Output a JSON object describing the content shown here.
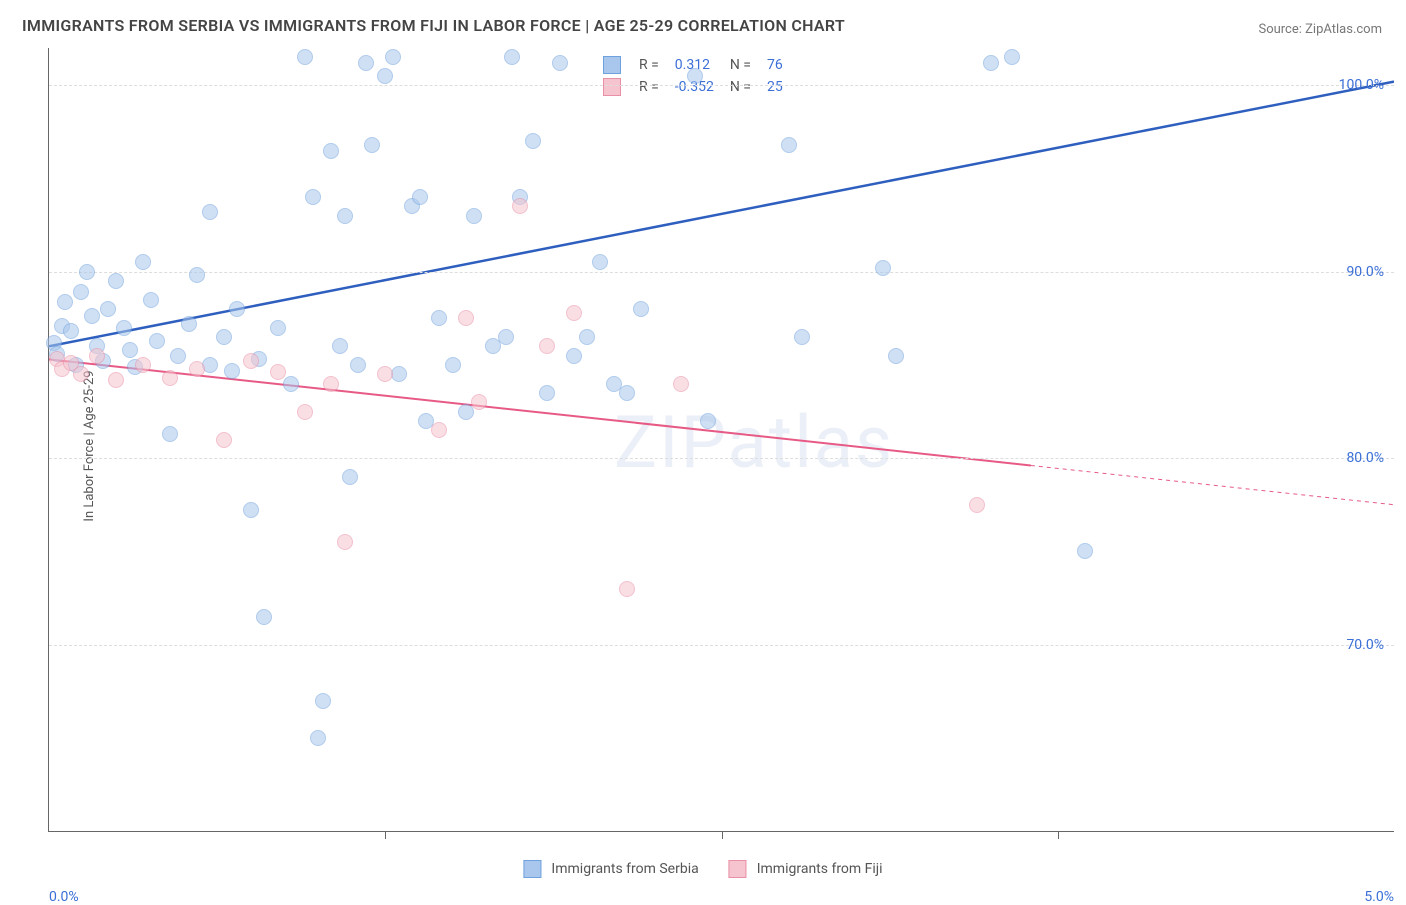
{
  "title": "IMMIGRANTS FROM SERBIA VS IMMIGRANTS FROM FIJI IN LABOR FORCE | AGE 25-29 CORRELATION CHART",
  "source": "Source: ZipAtlas.com",
  "ylabel": "In Labor Force | Age 25-29",
  "watermark": "ZIPatlas",
  "chart": {
    "type": "scatter",
    "xlim": [
      0.0,
      5.0
    ],
    "ylim": [
      60.0,
      102.0
    ],
    "x_tick_positions": [
      0.0,
      1.25,
      2.5,
      3.75,
      5.0
    ],
    "x_tick_labels_visible": {
      "0.0": "0.0%",
      "5.0": "5.0%"
    },
    "y_grid_positions": [
      70.0,
      80.0,
      90.0,
      100.0
    ],
    "y_grid_labels": [
      "70.0%",
      "80.0%",
      "90.0%",
      "100.0%"
    ],
    "grid_color": "#dddddd",
    "axis_color": "#666666",
    "background_color": "#ffffff",
    "tick_label_color": "#3b6fd6",
    "tick_label_fontsize": 14,
    "marker_radius": 8,
    "marker_opacity": 0.55
  },
  "series": [
    {
      "name": "Immigrants from Serbia",
      "color_fill": "#a9c7ec",
      "color_stroke": "#6fa1dd",
      "line_color": "#2e5fbf",
      "line_width": 2.5,
      "trend": {
        "x1": 0.0,
        "y1": 86.0,
        "x2": 5.0,
        "y2": 100.2
      },
      "trend_dash_after_x": null,
      "R": "0.312",
      "N": "76",
      "points": [
        {
          "x": 0.02,
          "y": 86.2
        },
        {
          "x": 0.03,
          "y": 85.6
        },
        {
          "x": 0.05,
          "y": 87.1
        },
        {
          "x": 0.06,
          "y": 88.4
        },
        {
          "x": 0.08,
          "y": 86.8
        },
        {
          "x": 0.1,
          "y": 85.0
        },
        {
          "x": 0.12,
          "y": 88.9
        },
        {
          "x": 0.14,
          "y": 90.0
        },
        {
          "x": 0.16,
          "y": 87.6
        },
        {
          "x": 0.18,
          "y": 86.0
        },
        {
          "x": 0.2,
          "y": 85.2
        },
        {
          "x": 0.22,
          "y": 88.0
        },
        {
          "x": 0.25,
          "y": 89.5
        },
        {
          "x": 0.28,
          "y": 87.0
        },
        {
          "x": 0.3,
          "y": 85.8
        },
        {
          "x": 0.32,
          "y": 84.9
        },
        {
          "x": 0.35,
          "y": 90.5
        },
        {
          "x": 0.38,
          "y": 88.5
        },
        {
          "x": 0.4,
          "y": 86.3
        },
        {
          "x": 0.45,
          "y": 81.3
        },
        {
          "x": 0.48,
          "y": 85.5
        },
        {
          "x": 0.52,
          "y": 87.2
        },
        {
          "x": 0.55,
          "y": 89.8
        },
        {
          "x": 0.6,
          "y": 93.2
        },
        {
          "x": 0.6,
          "y": 85.0
        },
        {
          "x": 0.65,
          "y": 86.5
        },
        {
          "x": 0.68,
          "y": 84.7
        },
        {
          "x": 0.7,
          "y": 88.0
        },
        {
          "x": 0.75,
          "y": 77.2
        },
        {
          "x": 0.78,
          "y": 85.3
        },
        {
          "x": 0.8,
          "y": 71.5
        },
        {
          "x": 0.85,
          "y": 87.0
        },
        {
          "x": 0.9,
          "y": 84.0
        },
        {
          "x": 0.95,
          "y": 101.5
        },
        {
          "x": 0.98,
          "y": 94.0
        },
        {
          "x": 1.0,
          "y": 65.0
        },
        {
          "x": 1.02,
          "y": 67.0
        },
        {
          "x": 1.05,
          "y": 96.5
        },
        {
          "x": 1.08,
          "y": 86.0
        },
        {
          "x": 1.1,
          "y": 93.0
        },
        {
          "x": 1.12,
          "y": 79.0
        },
        {
          "x": 1.15,
          "y": 85.0
        },
        {
          "x": 1.18,
          "y": 101.2
        },
        {
          "x": 1.28,
          "y": 101.5
        },
        {
          "x": 1.2,
          "y": 96.8
        },
        {
          "x": 1.25,
          "y": 100.5
        },
        {
          "x": 1.3,
          "y": 84.5
        },
        {
          "x": 1.35,
          "y": 93.5
        },
        {
          "x": 1.38,
          "y": 94.0
        },
        {
          "x": 1.4,
          "y": 82.0
        },
        {
          "x": 1.45,
          "y": 87.5
        },
        {
          "x": 1.5,
          "y": 85.0
        },
        {
          "x": 1.55,
          "y": 82.5
        },
        {
          "x": 1.58,
          "y": 93.0
        },
        {
          "x": 1.65,
          "y": 86.0
        },
        {
          "x": 1.7,
          "y": 86.5
        },
        {
          "x": 1.72,
          "y": 101.5
        },
        {
          "x": 1.75,
          "y": 94.0
        },
        {
          "x": 1.8,
          "y": 97.0
        },
        {
          "x": 1.85,
          "y": 83.5
        },
        {
          "x": 1.9,
          "y": 101.2
        },
        {
          "x": 1.95,
          "y": 85.5
        },
        {
          "x": 2.0,
          "y": 86.5
        },
        {
          "x": 2.05,
          "y": 90.5
        },
        {
          "x": 2.1,
          "y": 84.0
        },
        {
          "x": 2.15,
          "y": 83.5
        },
        {
          "x": 2.2,
          "y": 88.0
        },
        {
          "x": 2.4,
          "y": 100.5
        },
        {
          "x": 2.45,
          "y": 82.0
        },
        {
          "x": 2.75,
          "y": 96.8
        },
        {
          "x": 2.8,
          "y": 86.5
        },
        {
          "x": 3.5,
          "y": 101.2
        },
        {
          "x": 3.58,
          "y": 101.5
        },
        {
          "x": 3.1,
          "y": 90.2
        },
        {
          "x": 3.15,
          "y": 85.5
        },
        {
          "x": 3.85,
          "y": 75.0
        }
      ]
    },
    {
      "name": "Immigrants from Fiji",
      "color_fill": "#f5c4cf",
      "color_stroke": "#e98fa6",
      "line_color": "#e75a85",
      "line_width": 2.0,
      "trend": {
        "x1": 0.0,
        "y1": 85.3,
        "x2": 5.0,
        "y2": 77.5
      },
      "trend_dash_after_x": 3.65,
      "R": "-0.352",
      "N": "25",
      "points": [
        {
          "x": 0.03,
          "y": 85.3
        },
        {
          "x": 0.05,
          "y": 84.8
        },
        {
          "x": 0.08,
          "y": 85.1
        },
        {
          "x": 0.12,
          "y": 84.5
        },
        {
          "x": 0.18,
          "y": 85.5
        },
        {
          "x": 0.25,
          "y": 84.2
        },
        {
          "x": 0.35,
          "y": 85.0
        },
        {
          "x": 0.45,
          "y": 84.3
        },
        {
          "x": 0.55,
          "y": 84.8
        },
        {
          "x": 0.65,
          "y": 81.0
        },
        {
          "x": 0.75,
          "y": 85.2
        },
        {
          "x": 0.85,
          "y": 84.6
        },
        {
          "x": 0.95,
          "y": 82.5
        },
        {
          "x": 1.05,
          "y": 84.0
        },
        {
          "x": 1.1,
          "y": 75.5
        },
        {
          "x": 1.25,
          "y": 84.5
        },
        {
          "x": 1.45,
          "y": 81.5
        },
        {
          "x": 1.55,
          "y": 87.5
        },
        {
          "x": 1.6,
          "y": 83.0
        },
        {
          "x": 1.75,
          "y": 93.5
        },
        {
          "x": 1.85,
          "y": 86.0
        },
        {
          "x": 1.95,
          "y": 87.8
        },
        {
          "x": 2.15,
          "y": 73.0
        },
        {
          "x": 2.35,
          "y": 84.0
        },
        {
          "x": 3.45,
          "y": 77.5
        }
      ]
    }
  ],
  "legend_top": {
    "R_label": "R =",
    "N_label": "N ="
  },
  "bottom_legend_labels": [
    "Immigrants from Serbia",
    "Immigrants from Fiji"
  ]
}
